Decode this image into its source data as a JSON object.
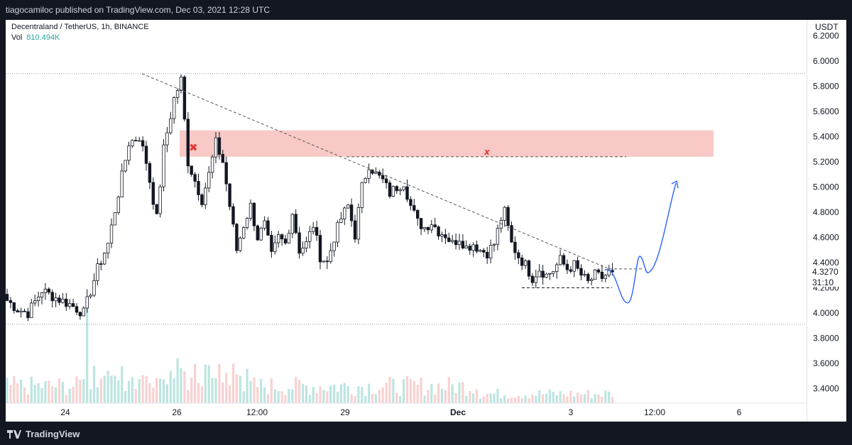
{
  "header": {
    "published_text": "tiagocamiloc published on TradingView.com, Dec 03, 2021 12:28 UTC"
  },
  "legend": {
    "symbol_line": "Decentraland / TetherUS, 1h, BINANCE",
    "vol_label": "Vol",
    "vol_value": "810.494K"
  },
  "price_axis": {
    "currency": "USDT",
    "last_price": "4.3270",
    "countdown": "31:10"
  },
  "footer": {
    "brand": "TradingView"
  },
  "colors": {
    "up": "#26a69a",
    "down": "#131722",
    "candle_up_fill": "#ffffff",
    "zone": "#f8c9c6",
    "x_mark": "#e53935",
    "projection": "#2962ff",
    "trendline": "#555555",
    "last_price_label": "#131722"
  },
  "chart_data": {
    "type": "candlestick",
    "symbol": "Decentraland / TetherUS",
    "interval": "1h",
    "exchange": "BINANCE",
    "y_axis": {
      "ticks": [
        3.4,
        3.6,
        3.8,
        4.0,
        4.2,
        4.4,
        4.6,
        4.8,
        5.0,
        5.2,
        5.4,
        5.6,
        5.8,
        6.0,
        6.2
      ],
      "tick_labels": [
        "3.4000",
        "3.6000",
        "3.8000",
        "4.0000",
        "4.2000",
        "4.4000",
        "4.6000",
        "4.8000",
        "5.0000",
        "5.2000",
        "5.4000",
        "5.6000",
        "5.8000",
        "6.0000",
        "6.2000"
      ],
      "range": [
        3.28,
        6.28
      ]
    },
    "x_axis": {
      "tick_labels": [
        "24",
        "26",
        "12:00",
        "29",
        "Dec",
        "3",
        "12:00",
        "6"
      ],
      "tick_bold": [
        false,
        false,
        false,
        false,
        true,
        false,
        false,
        false
      ]
    },
    "price_path": [
      [
        0,
        4.1
      ],
      [
        3,
        4.03
      ],
      [
        6,
        4.0
      ],
      [
        10,
        4.18
      ],
      [
        14,
        4.12
      ],
      [
        18,
        4.07
      ],
      [
        22,
        4.0
      ],
      [
        26,
        4.35
      ],
      [
        29,
        4.55
      ],
      [
        32,
        4.95
      ],
      [
        35,
        5.35
      ],
      [
        38,
        5.4
      ],
      [
        40,
        5.2
      ],
      [
        43,
        4.75
      ],
      [
        45,
        5.3
      ],
      [
        48,
        5.7
      ],
      [
        50,
        5.85
      ],
      [
        52,
        5.2
      ],
      [
        54,
        5.05
      ],
      [
        56,
        4.9
      ],
      [
        58,
        5.1
      ],
      [
        60,
        5.35
      ],
      [
        62,
        5.2
      ],
      [
        64,
        4.85
      ],
      [
        66,
        4.5
      ],
      [
        68,
        4.7
      ],
      [
        70,
        4.85
      ],
      [
        72,
        4.6
      ],
      [
        74,
        4.7
      ],
      [
        76,
        4.45
      ],
      [
        78,
        4.6
      ],
      [
        80,
        4.55
      ],
      [
        82,
        4.8
      ],
      [
        84,
        4.5
      ],
      [
        86,
        4.55
      ],
      [
        88,
        4.7
      ],
      [
        90,
        4.45
      ],
      [
        92,
        4.4
      ],
      [
        94,
        4.6
      ],
      [
        96,
        4.75
      ],
      [
        98,
        4.85
      ],
      [
        100,
        4.62
      ],
      [
        102,
        5.0
      ],
      [
        104,
        5.18
      ],
      [
        106,
        5.1
      ],
      [
        108,
        5.05
      ],
      [
        110,
        4.95
      ],
      [
        112,
        5.0
      ],
      [
        114,
        5.04
      ],
      [
        116,
        4.85
      ],
      [
        118,
        4.72
      ],
      [
        120,
        4.68
      ],
      [
        122,
        4.72
      ],
      [
        124,
        4.65
      ],
      [
        126,
        4.62
      ],
      [
        128,
        4.55
      ],
      [
        130,
        4.6
      ],
      [
        132,
        4.52
      ],
      [
        134,
        4.55
      ],
      [
        136,
        4.5
      ],
      [
        138,
        4.48
      ],
      [
        140,
        4.55
      ],
      [
        142,
        4.75
      ],
      [
        143,
        4.8
      ],
      [
        145,
        4.55
      ],
      [
        147,
        4.45
      ],
      [
        149,
        4.38
      ],
      [
        151,
        4.28
      ],
      [
        153,
        4.35
      ],
      [
        155,
        4.3
      ],
      [
        157,
        4.34
      ],
      [
        159,
        4.42
      ],
      [
        161,
        4.35
      ],
      [
        163,
        4.38
      ],
      [
        165,
        4.3
      ],
      [
        167,
        4.24
      ],
      [
        169,
        4.3
      ],
      [
        171,
        4.28
      ],
      [
        173,
        4.32
      ],
      [
        174,
        4.327
      ]
    ],
    "volume_peak": "810.494K",
    "annotations": {
      "horizontal_lines": [
        5.9,
        3.91
      ],
      "resistance_zone": [
        5.24,
        5.45
      ],
      "trendline": {
        "from": 5.9,
        "to": 4.35
      },
      "resistance_dashed": 5.24,
      "support_dashed": 4.2,
      "range_top_dashed": 4.35,
      "projection_path": [
        4.34,
        4.08,
        4.45,
        4.33,
        5.03
      ]
    },
    "last_price": 4.327
  }
}
